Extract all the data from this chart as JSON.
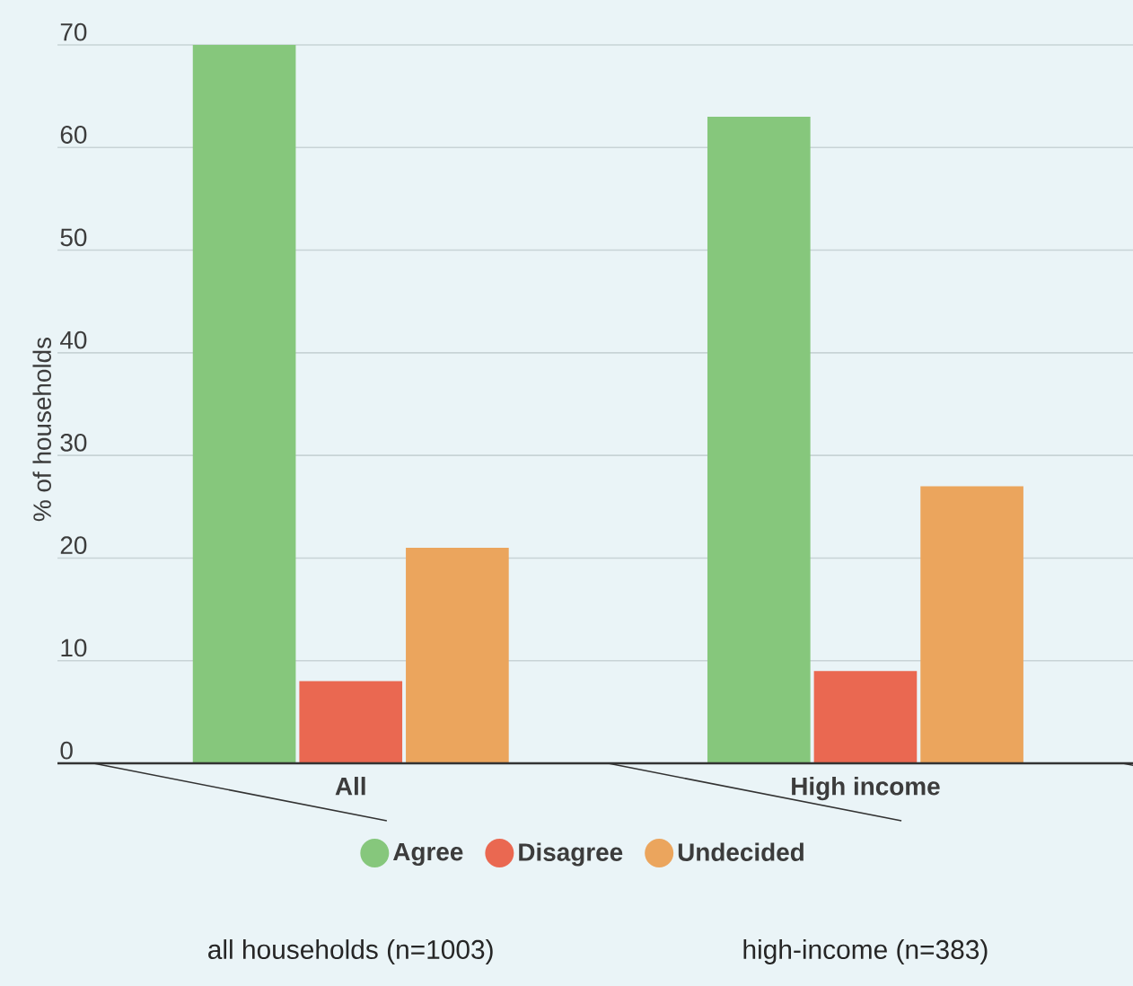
{
  "chart_data": {
    "type": "bar",
    "ylabel": "% of households",
    "categories": [
      "All",
      "High income"
    ],
    "series": [
      {
        "name": "Agree",
        "color": "#86c77c",
        "values": [
          70,
          63
        ]
      },
      {
        "name": "Disagree",
        "color": "#ea6851",
        "values": [
          8,
          9
        ]
      },
      {
        "name": "Undecided",
        "color": "#eba55d",
        "values": [
          21,
          27
        ]
      }
    ],
    "ylim": [
      0,
      70
    ],
    "yticks": [
      0,
      10,
      20,
      30,
      40,
      50,
      60,
      70
    ],
    "grid": "y",
    "legend": "bottom",
    "annotations": [
      "all households (n=1003)",
      "high-income (n=383)"
    ]
  }
}
